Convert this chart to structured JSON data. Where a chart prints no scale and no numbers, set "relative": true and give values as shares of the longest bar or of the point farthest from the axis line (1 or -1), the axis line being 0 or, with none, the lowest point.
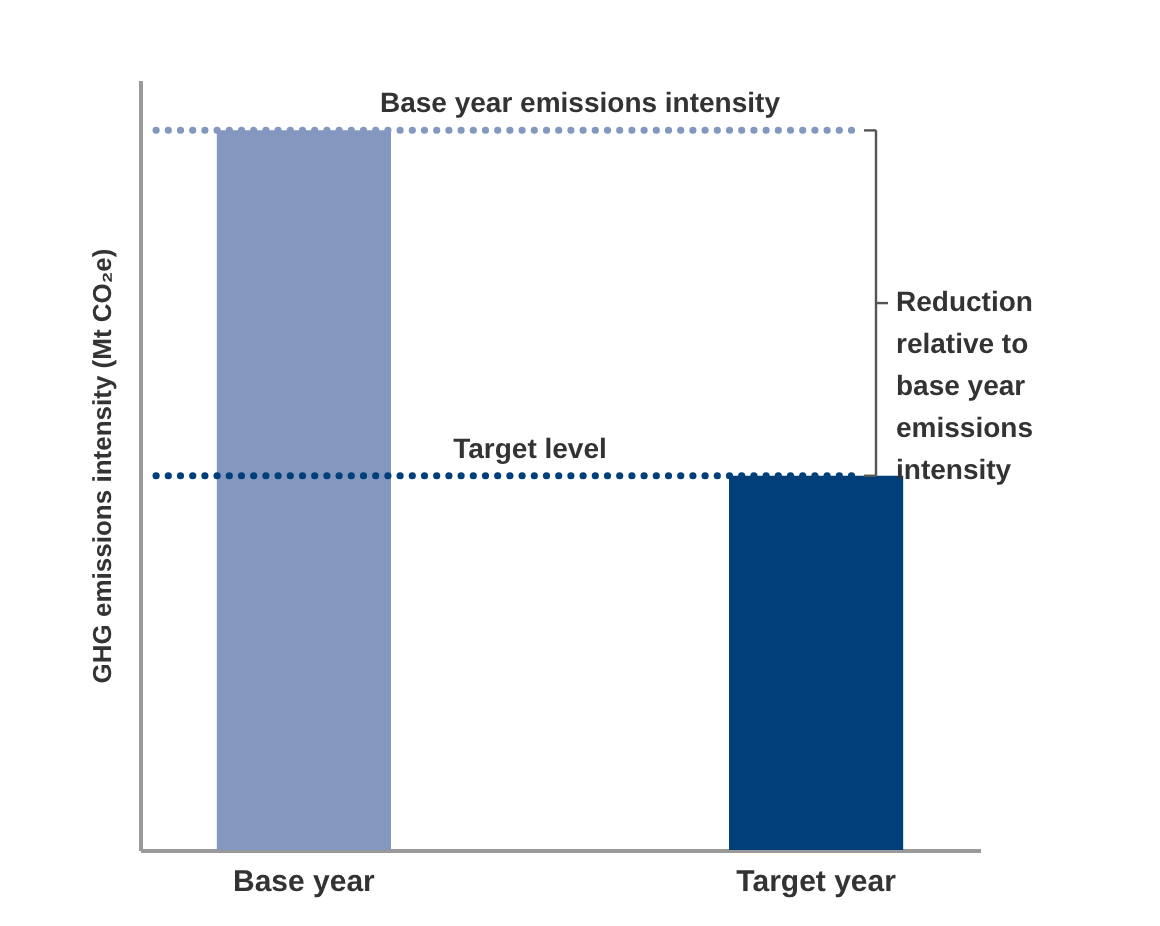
{
  "chart_data": {
    "type": "bar",
    "relative": true,
    "ylabel": "GHG emissions intensity (Mt CO₂e)",
    "categories": [
      "Base year",
      "Target year"
    ],
    "values": [
      1,
      0.52
    ],
    "colors": [
      "#8497bf",
      "#003f7a"
    ],
    "tick_labels": "x",
    "ref_lines": [
      {
        "axis": "y",
        "value": 1,
        "label": "Base year emissions intensity",
        "color": "#8497bf",
        "line_style": "dotted"
      },
      {
        "axis": "y",
        "value": 0.52,
        "label": "Target level",
        "color": "#003f7a",
        "line_style": "dotted"
      }
    ],
    "annotations": [
      "Reduction relative to base year emissions intensity"
    ]
  }
}
